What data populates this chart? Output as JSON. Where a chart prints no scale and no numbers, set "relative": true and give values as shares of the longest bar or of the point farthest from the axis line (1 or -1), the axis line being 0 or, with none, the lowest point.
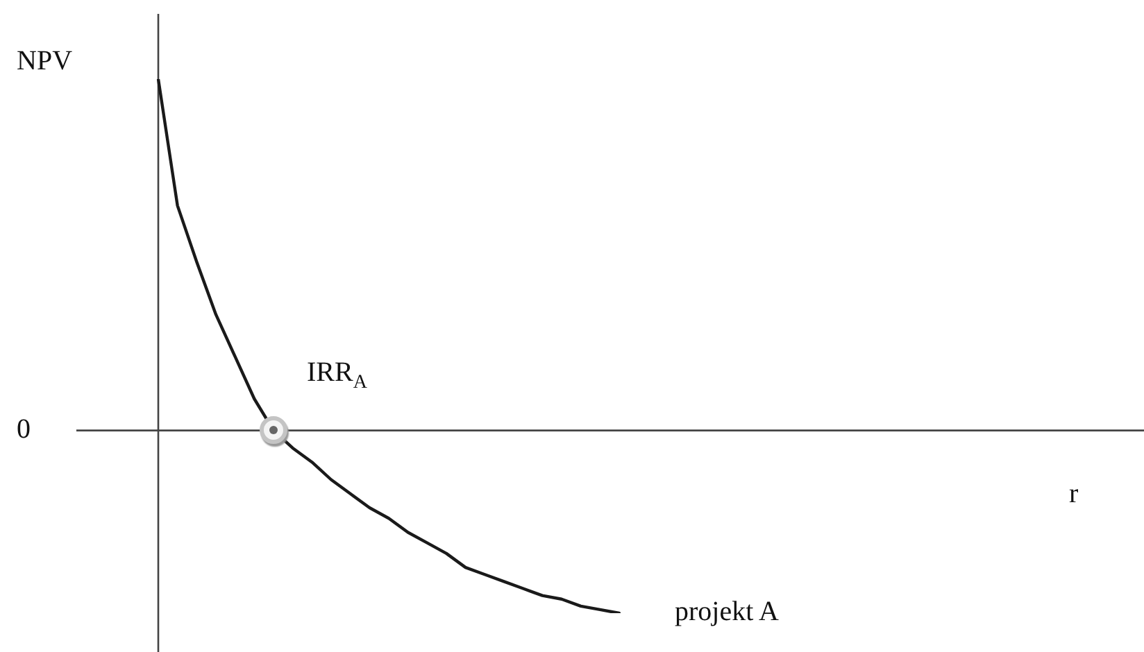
{
  "chart_data": {
    "type": "line",
    "relative": true,
    "ylabel": "NPV",
    "categories": [
      null,
      null,
      null,
      null,
      null,
      null,
      null,
      null,
      null,
      null,
      null,
      null,
      null,
      null,
      null,
      null,
      null,
      null,
      null,
      null,
      null,
      null,
      null,
      null,
      null
    ],
    "series": [
      {
        "name": "projekt A",
        "color": "#1a1a1a",
        "values": [
          1,
          0.64,
          0.48,
          0.33,
          0.21,
          0.09,
          0,
          -0.05,
          -0.09,
          -0.14,
          -0.18,
          -0.22,
          -0.25,
          -0.29,
          -0.32,
          -0.35,
          -0.39,
          -0.41,
          -0.43,
          -0.45,
          -0.47,
          -0.48,
          -0.5,
          -0.51,
          -0.52
        ]
      }
    ],
    "ref_lines": [
      {
        "axis": "y",
        "value": 0,
        "label": "0",
        "color": "#444444"
      }
    ],
    "annotations": [
      {
        "text": "IRR$_{A}$",
        "y": 0
      },
      "r"
    ],
    "marker": "none",
    "line_style": "solid",
    "legend": false
  }
}
